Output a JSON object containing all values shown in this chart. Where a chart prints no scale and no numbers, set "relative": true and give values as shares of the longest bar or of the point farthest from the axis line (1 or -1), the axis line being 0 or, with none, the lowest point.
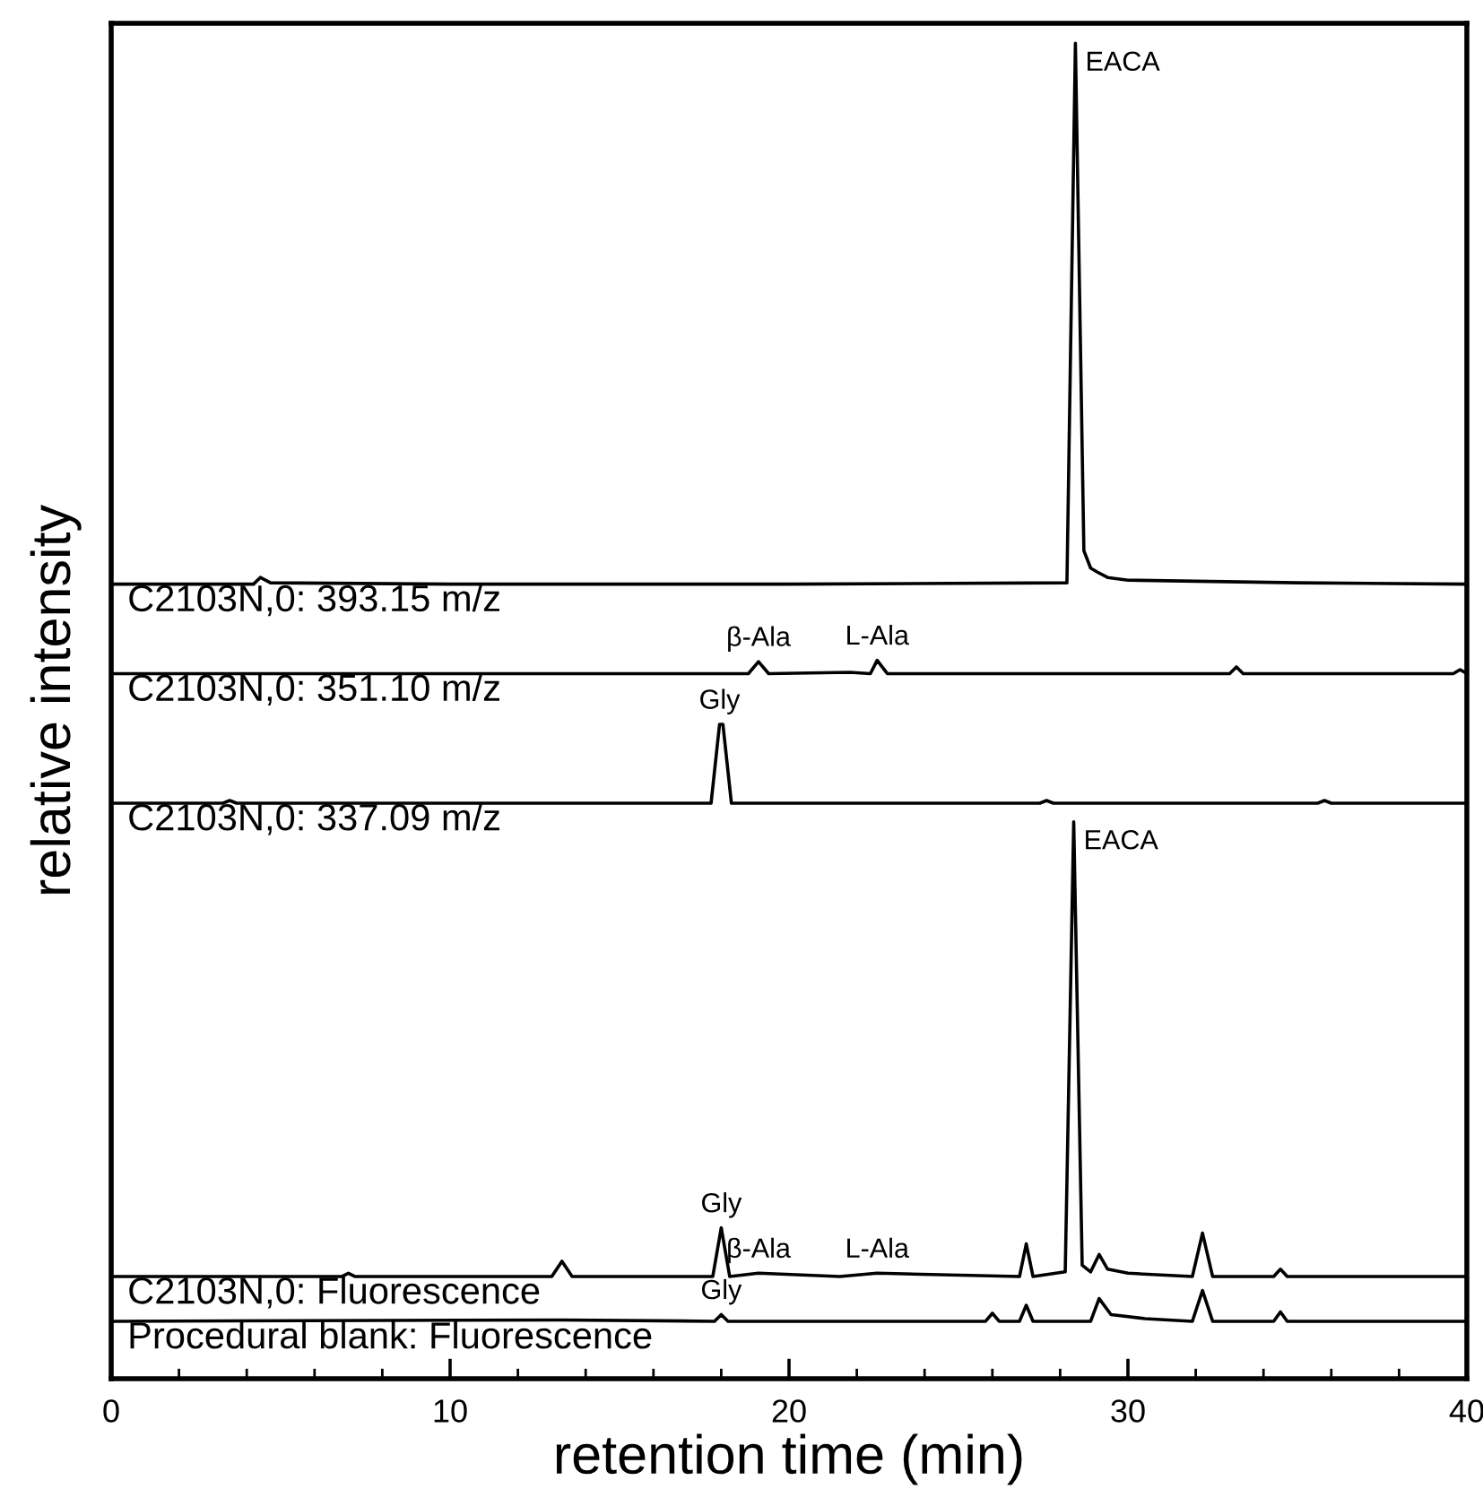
{
  "chart_data": {
    "type": "line",
    "relative": true,
    "xlabel": "retention time (min)",
    "ylabel": "relative intensity",
    "xlim": [
      0,
      40
    ],
    "xticks": [
      0,
      {
        "value": 2,
        "label": null
      },
      {
        "value": 4,
        "label": null
      },
      {
        "value": 6,
        "label": null
      },
      {
        "value": 8,
        "label": null
      },
      10,
      {
        "value": 12,
        "label": null
      },
      {
        "value": 14,
        "label": null
      },
      {
        "value": 16,
        "label": null
      },
      {
        "value": 18,
        "label": null
      },
      20,
      {
        "value": 22,
        "label": null
      },
      {
        "value": 24,
        "label": null
      },
      {
        "value": 26,
        "label": null
      },
      {
        "value": 28,
        "label": null
      },
      30,
      {
        "value": 32,
        "label": null
      },
      {
        "value": 34,
        "label": null
      },
      {
        "value": 36,
        "label": null
      },
      {
        "value": 38,
        "label": null
      },
      40
    ],
    "grid": false,
    "legend": false,
    "marker": "none",
    "line_style": "solid",
    "series": [
      {
        "name": "C2103N,0: 393.15 m/z",
        "color": "#000000",
        "x": [
          0,
          3.5,
          4.2,
          4.4,
          4.7,
          10,
          20,
          28.2,
          28.45,
          28.7,
          28.9,
          29.1,
          29.4,
          30,
          35,
          40
        ],
        "values": [
          0.595,
          0.595,
          0.595,
          0.6,
          0.596,
          0.595,
          0.595,
          0.596,
          1.0,
          0.62,
          0.607,
          0.604,
          0.6,
          0.598,
          0.596,
          0.595
        ]
      },
      {
        "name": "C2103N,0: 351.10 m/z",
        "color": "#000000",
        "x": [
          0,
          3.5,
          18.8,
          19.1,
          19.4,
          21.8,
          22.4,
          22.6,
          22.9,
          33,
          33.2,
          33.4,
          39.6,
          39.8,
          40
        ],
        "values": [
          0.528,
          0.528,
          0.528,
          0.537,
          0.528,
          0.529,
          0.528,
          0.538,
          0.528,
          0.528,
          0.533,
          0.528,
          0.528,
          0.531,
          0.528
        ]
      },
      {
        "name": "C2103N,0: 337.09 m/z",
        "color": "#000000",
        "x": [
          0,
          3.3,
          3.5,
          3.7,
          17.7,
          17.95,
          18.05,
          18.3,
          27.4,
          27.6,
          27.8,
          35.6,
          35.8,
          36,
          40
        ],
        "values": [
          0.431,
          0.431,
          0.433,
          0.431,
          0.431,
          0.49,
          0.49,
          0.431,
          0.431,
          0.433,
          0.431,
          0.431,
          0.433,
          0.431,
          0.431
        ]
      },
      {
        "name": "C2103N,0: Fluorescence",
        "color": "#000000",
        "x": [
          0,
          6.8,
          7,
          7.2,
          13,
          13.3,
          13.6,
          17.75,
          18,
          18.25,
          19.1,
          21.5,
          22.6,
          26.8,
          27,
          27.2,
          28.15,
          28.4,
          28.65,
          28.9,
          29.15,
          29.4,
          30,
          31.9,
          32.2,
          32.5,
          34.3,
          34.5,
          34.7,
          40
        ],
        "values": [
          0.0765,
          0.0765,
          0.079,
          0.0765,
          0.0765,
          0.088,
          0.0765,
          0.0765,
          0.113,
          0.0765,
          0.079,
          0.0765,
          0.079,
          0.0765,
          0.101,
          0.0765,
          0.08,
          0.417,
          0.085,
          0.08,
          0.093,
          0.082,
          0.079,
          0.0765,
          0.109,
          0.0765,
          0.0765,
          0.082,
          0.0765,
          0.0765
        ]
      },
      {
        "name": "Procedural blank: Fluorescence",
        "color": "#000000",
        "x": [
          0,
          13.3,
          17.8,
          18,
          18.2,
          25.8,
          26,
          26.2,
          26.8,
          27,
          27.2,
          28.9,
          29.15,
          29.5,
          30.5,
          31.9,
          32.2,
          32.5,
          34.3,
          34.5,
          34.7,
          40
        ],
        "values": [
          0.043,
          0.044,
          0.043,
          0.048,
          0.043,
          0.043,
          0.049,
          0.043,
          0.043,
          0.055,
          0.043,
          0.043,
          0.06,
          0.048,
          0.045,
          0.043,
          0.066,
          0.043,
          0.043,
          0.05,
          0.043,
          0.043
        ]
      }
    ],
    "annotations": [
      {
        "text": "EACA",
        "x": 28.45,
        "y": 1.0
      },
      {
        "text": "β-Ala",
        "x": 19.1,
        "y": 0.537
      },
      {
        "text": "L-Ala",
        "x": 22.6,
        "y": 0.538
      },
      {
        "text": "Gly",
        "x": 17.95,
        "y": 0.49
      },
      {
        "text": "EACA",
        "x": 28.4,
        "y": 0.417
      },
      {
        "text": "Gly",
        "x": 18,
        "y": 0.113
      },
      {
        "text": "β-Ala",
        "x": 19.1,
        "y": 0.079
      },
      {
        "text": "L-Ala",
        "x": 22.6,
        "y": 0.079
      },
      {
        "text": "Gly",
        "x": 18,
        "y": 0.048
      }
    ]
  }
}
